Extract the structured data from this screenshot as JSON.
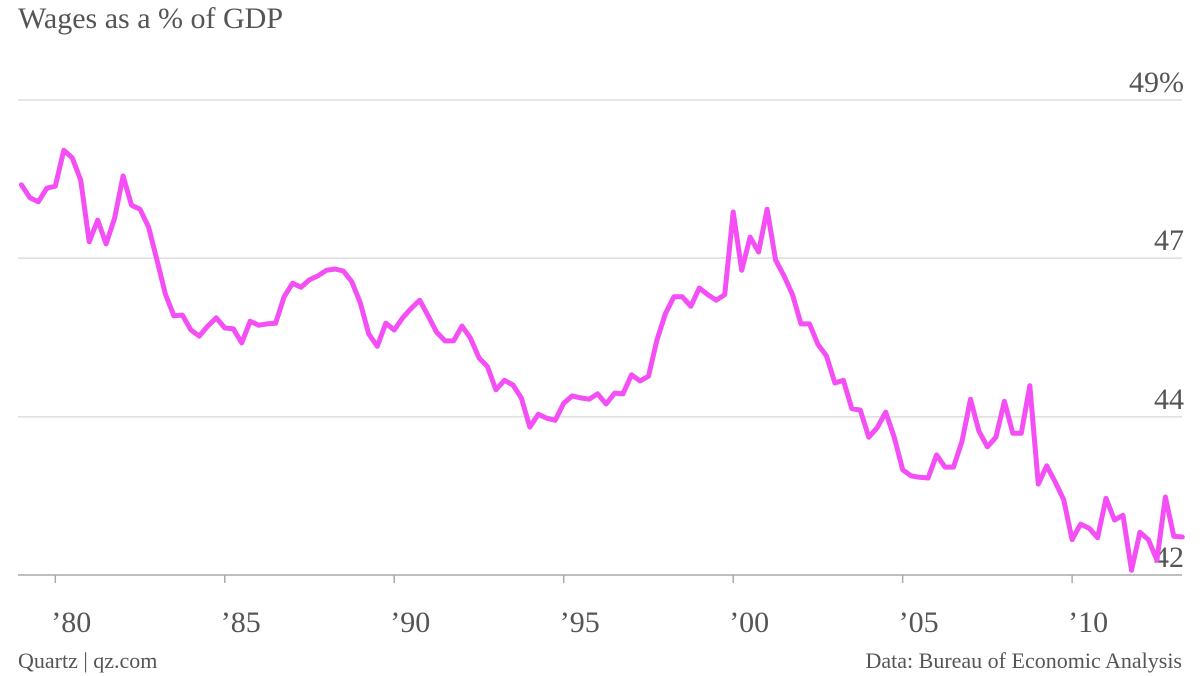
{
  "chart_data": {
    "type": "line",
    "title": "Wages as a % of GDP",
    "source": "Data: Bureau of Economic Analysis",
    "credit": "Quartz | qz.com",
    "xlim": [
      1978.9,
      2013.3
    ],
    "xticks": [
      {
        "value": 1980,
        "label": "’80"
      },
      {
        "value": 1985,
        "label": "’85"
      },
      {
        "value": 1990,
        "label": "’90"
      },
      {
        "value": 1995,
        "label": "’95"
      },
      {
        "value": 2000,
        "label": "’00"
      },
      {
        "value": 2005,
        "label": "’05"
      },
      {
        "value": 2010,
        "label": "’10"
      }
    ],
    "ylim": [
      42,
      49
    ],
    "yticks": [
      42,
      {
        "value": 44.33,
        "label": "44"
      },
      {
        "value": 46.67,
        "label": "47"
      },
      {
        "value": 49,
        "label": "49%"
      }
    ],
    "grid": true,
    "x": [
      1979,
      1979.25,
      1979.5,
      1979.75,
      1980,
      1980.25,
      1980.5,
      1980.75,
      1981,
      1981.25,
      1981.5,
      1981.75,
      1982,
      1982.25,
      1982.5,
      1982.75,
      1983,
      1983.25,
      1983.5,
      1983.75,
      1984,
      1984.25,
      1984.5,
      1984.75,
      1985,
      1985.25,
      1985.5,
      1985.75,
      1986,
      1986.25,
      1986.5,
      1986.75,
      1987,
      1987.25,
      1987.5,
      1987.75,
      1988,
      1988.25,
      1988.5,
      1988.75,
      1989,
      1989.25,
      1989.5,
      1989.75,
      1990,
      1990.25,
      1990.5,
      1990.75,
      1991,
      1991.25,
      1991.5,
      1991.75,
      1992,
      1992.25,
      1992.5,
      1992.75,
      1993,
      1993.25,
      1993.5,
      1993.75,
      1994,
      1994.25,
      1994.5,
      1994.75,
      1995,
      1995.25,
      1995.5,
      1995.75,
      1996,
      1996.25,
      1996.5,
      1996.75,
      1997,
      1997.25,
      1997.5,
      1997.75,
      1998,
      1998.25,
      1998.5,
      1998.75,
      1999,
      1999.25,
      1999.5,
      1999.75,
      2000,
      2000.25,
      2000.5,
      2000.75,
      2001,
      2001.25,
      2001.5,
      2001.75,
      2002,
      2002.25,
      2002.5,
      2002.75,
      2003,
      2003.25,
      2003.5,
      2003.75,
      2004,
      2004.25,
      2004.5,
      2004.75,
      2005,
      2005.25,
      2005.5,
      2005.75,
      2006,
      2006.25,
      2006.5,
      2006.75,
      2007,
      2007.25,
      2007.5,
      2007.75,
      2008,
      2008.25,
      2008.5,
      2008.75,
      2009,
      2009.25,
      2009.5,
      2009.75,
      2010,
      2010.25,
      2010.5,
      2010.75,
      2011,
      2011.25,
      2011.5,
      2011.75,
      2012,
      2012.25,
      2012.5,
      2012.75,
      2013,
      2013.25
    ],
    "series": [
      {
        "name": "Wages",
        "color": "#f34ff5",
        "values": [
          47.75,
          47.56,
          47.5,
          47.7,
          47.73,
          48.26,
          48.15,
          47.82,
          46.91,
          47.23,
          46.88,
          47.26,
          47.88,
          47.45,
          47.39,
          47.13,
          46.64,
          46.14,
          45.82,
          45.83,
          45.61,
          45.52,
          45.67,
          45.79,
          45.64,
          45.63,
          45.42,
          45.74,
          45.68,
          45.7,
          45.71,
          46.1,
          46.3,
          46.24,
          46.35,
          46.41,
          46.49,
          46.51,
          46.48,
          46.32,
          46.01,
          45.55,
          45.37,
          45.71,
          45.61,
          45.79,
          45.93,
          46.05,
          45.82,
          45.58,
          45.45,
          45.45,
          45.67,
          45.49,
          45.2,
          45.07,
          44.73,
          44.87,
          44.8,
          44.61,
          44.18,
          44.37,
          44.31,
          44.28,
          44.53,
          44.64,
          44.61,
          44.59,
          44.67,
          44.52,
          44.68,
          44.67,
          44.95,
          44.86,
          44.93,
          45.46,
          45.85,
          46.1,
          46.1,
          45.96,
          46.23,
          46.13,
          46.05,
          46.13,
          47.35,
          46.49,
          46.98,
          46.76,
          47.39,
          46.64,
          46.41,
          46.13,
          45.7,
          45.7,
          45.4,
          45.23,
          44.83,
          44.87,
          44.45,
          44.43,
          44.03,
          44.17,
          44.4,
          44.03,
          43.55,
          43.46,
          43.44,
          43.43,
          43.77,
          43.59,
          43.59,
          43.97,
          44.59,
          44.12,
          43.89,
          44.03,
          44.56,
          44.09,
          44.09,
          44.79,
          43.34,
          43.61,
          43.37,
          43.11,
          42.52,
          42.75,
          42.69,
          42.55,
          43.13,
          42.81,
          42.88,
          42.07,
          42.63,
          42.52,
          42.22,
          43.15,
          42.57,
          42.56
        ]
      }
    ]
  }
}
